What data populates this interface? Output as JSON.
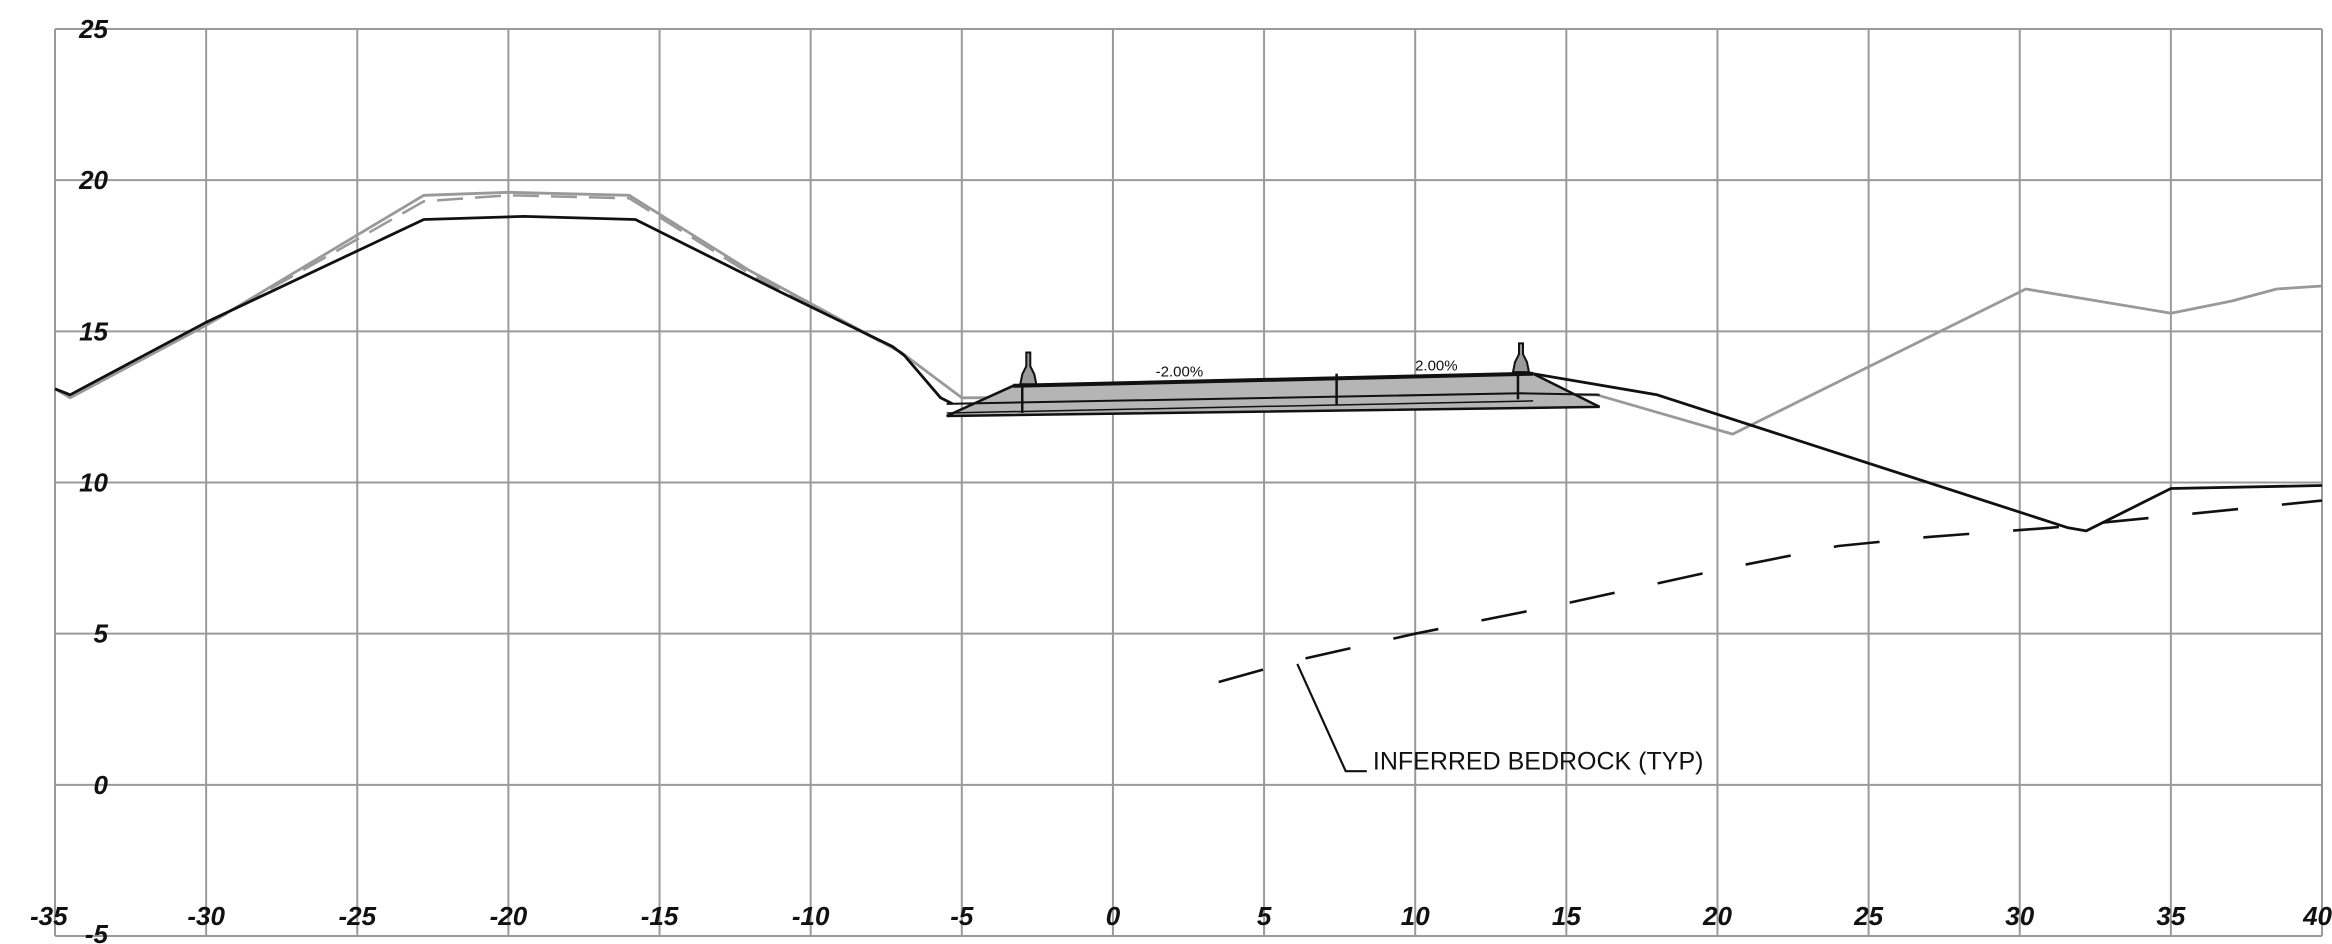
{
  "chart_data": {
    "type": "line",
    "title": "",
    "xlabel": "",
    "ylabel": "",
    "xlim": [
      -35,
      40
    ],
    "ylim": [
      -5,
      25
    ],
    "x_ticks": [
      "-35",
      "-30",
      "-25",
      "-20",
      "-15",
      "-10",
      "-5",
      "0",
      "5",
      "10",
      "15",
      "20",
      "25",
      "30",
      "35",
      "40"
    ],
    "y_ticks": [
      "25",
      "20",
      "15",
      "10",
      "5",
      "0",
      "-5"
    ],
    "grid": true,
    "series": [
      {
        "style": "gray-solid",
        "points": [
          [
            -35,
            13.1
          ],
          [
            -34.5,
            12.8
          ],
          [
            -30,
            15.2
          ],
          [
            -22.8,
            19.5
          ],
          [
            -20,
            19.6
          ],
          [
            -16,
            19.5
          ],
          [
            -12,
            17
          ],
          [
            -7,
            14.3
          ],
          [
            -5,
            12.8
          ],
          [
            16,
            12.9
          ],
          [
            20.5,
            11.6
          ],
          [
            30.2,
            16.4
          ],
          [
            35,
            15.6
          ],
          [
            37,
            16
          ],
          [
            38.5,
            16.4
          ],
          [
            40,
            16.5
          ]
        ]
      },
      {
        "style": "gray-dashed",
        "points": [
          [
            -34.5,
            12.8
          ],
          [
            -30,
            15.2
          ],
          [
            -22.8,
            19.3
          ],
          [
            -20,
            19.5
          ],
          [
            -16,
            19.4
          ],
          [
            -12,
            16.9
          ],
          [
            -7,
            14.3
          ]
        ]
      },
      {
        "style": "black-solid",
        "points": [
          [
            -35,
            13.1
          ],
          [
            -34.5,
            12.9
          ],
          [
            -30,
            15.3
          ],
          [
            -22.8,
            18.7
          ],
          [
            -19.5,
            18.8
          ],
          [
            -15.8,
            18.7
          ],
          [
            -11,
            16.3
          ],
          [
            -7.3,
            14.5
          ],
          [
            -6.9,
            14.2
          ],
          [
            -5.7,
            12.8
          ],
          [
            -5.3,
            12.6
          ]
        ]
      },
      {
        "style": "black-solid",
        "points": [
          [
            13.9,
            13.6
          ],
          [
            18,
            12.9
          ],
          [
            31.6,
            8.5
          ],
          [
            32.2,
            8.4
          ],
          [
            35,
            9.8
          ],
          [
            40,
            9.9
          ]
        ]
      },
      {
        "name": "INFERRED BEDROCK (TYP)",
        "style": "black-dashed",
        "points": [
          [
            3.5,
            3.4
          ],
          [
            6,
            4.1
          ],
          [
            10,
            5.0
          ],
          [
            15,
            6.0
          ],
          [
            20,
            7.1
          ],
          [
            24,
            7.9
          ],
          [
            27,
            8.2
          ],
          [
            31,
            8.5
          ],
          [
            35,
            8.9
          ],
          [
            40,
            9.4
          ]
        ]
      }
    ],
    "annotations": [
      {
        "text": "-2.00%",
        "x": 2.2,
        "y": 13.5
      },
      {
        "text": "2.00%",
        "x": 10.7,
        "y": 13.7
      },
      {
        "text": "INFERRED BEDROCK (TYP)",
        "x": 8.6,
        "y": 0.5
      }
    ]
  }
}
